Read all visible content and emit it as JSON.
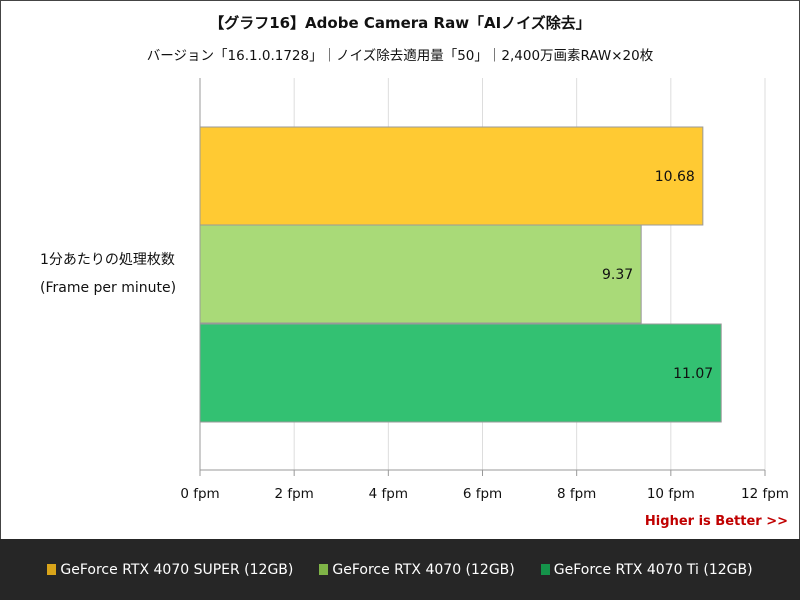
{
  "chart_data": {
    "type": "bar",
    "orientation": "horizontal",
    "title": "【グラフ16】Adobe Camera Raw「AIノイズ除去」",
    "subtitle": "バージョン「16.1.0.1728」｜ノイズ除去適用量「50」｜2,400万画素RAW×20枚",
    "categories": [
      "1分あたりの処理枚数",
      "(Frame per minute)"
    ],
    "series": [
      {
        "name": "GeForce RTX 4070 SUPER (12GB)",
        "value": 10.68,
        "label": "10.68",
        "color": "#ffca33",
        "legend_color": "#d9a41a"
      },
      {
        "name": "GeForce RTX 4070 (12GB)",
        "value": 9.37,
        "label": "9.37",
        "color": "#a9da78",
        "legend_color": "#7fb447"
      },
      {
        "name": "GeForce RTX 4070 Ti (12GB)",
        "value": 11.07,
        "label": "11.07",
        "color": "#33c172",
        "legend_color": "#15934a"
      }
    ],
    "xlim": [
      0,
      12
    ],
    "xticks": [
      0,
      2,
      4,
      6,
      8,
      10,
      12
    ],
    "xtick_labels": [
      "0 fpm",
      "2 fpm",
      "4 fpm",
      "6 fpm",
      "8 fpm",
      "10 fpm",
      "12 fpm"
    ],
    "grid": true,
    "legend_position": "bottom",
    "annotation": "Higher is Better >>"
  }
}
